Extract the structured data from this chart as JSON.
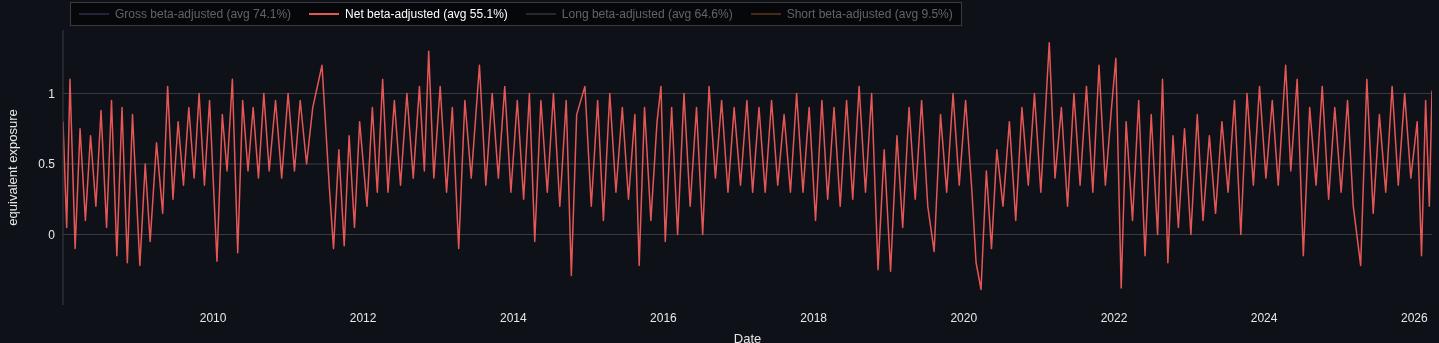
{
  "chart_data": {
    "type": "line",
    "xlabel": "Date",
    "ylabel": "equivalent exposure",
    "x": [
      "2008-01-02",
      "2008-01-20",
      "2008-02-05",
      "2008-03-01",
      "2008-03-25",
      "2008-04-20",
      "2008-05-15",
      "2008-06-10",
      "2008-07-05",
      "2008-08-01",
      "2008-08-25",
      "2008-09-20",
      "2008-10-15",
      "2008-11-10",
      "2008-12-05",
      "2009-01-10",
      "2009-02-05",
      "2009-03-01",
      "2009-04-01",
      "2009-05-01",
      "2009-05-25",
      "2009-06-20",
      "2009-07-15",
      "2009-08-10",
      "2009-09-05",
      "2009-10-01",
      "2009-10-25",
      "2009-11-20",
      "2009-12-15",
      "2010-01-20",
      "2010-02-15",
      "2010-03-10",
      "2010-04-05",
      "2010-05-01",
      "2010-05-25",
      "2010-06-20",
      "2010-07-15",
      "2010-08-10",
      "2010-09-05",
      "2010-10-01",
      "2010-11-01",
      "2010-12-01",
      "2011-01-01",
      "2011-02-01",
      "2011-03-01",
      "2011-04-01",
      "2011-05-01",
      "2011-06-15",
      "2011-07-20",
      "2011-08-10",
      "2011-09-05",
      "2011-10-01",
      "2011-10-25",
      "2011-11-20",
      "2011-12-15",
      "2012-01-20",
      "2012-02-15",
      "2012-03-10",
      "2012-04-05",
      "2012-05-01",
      "2012-06-01",
      "2012-07-01",
      "2012-08-01",
      "2012-09-01",
      "2012-10-01",
      "2012-10-25",
      "2012-11-15",
      "2012-12-10",
      "2013-01-10",
      "2013-02-10",
      "2013-03-10",
      "2013-04-10",
      "2013-05-10",
      "2013-06-10",
      "2013-07-20",
      "2013-08-20",
      "2013-09-20",
      "2013-10-20",
      "2013-11-20",
      "2013-12-20",
      "2014-01-20",
      "2014-02-20",
      "2014-03-20",
      "2014-04-15",
      "2014-05-15",
      "2014-06-15",
      "2014-07-15",
      "2014-08-15",
      "2014-09-15",
      "2014-10-10",
      "2014-11-05",
      "2014-12-15",
      "2015-01-15",
      "2015-02-15",
      "2015-03-15",
      "2015-04-15",
      "2015-05-15",
      "2015-06-15",
      "2015-07-15",
      "2015-08-15",
      "2015-09-05",
      "2015-10-01",
      "2015-11-01",
      "2015-12-01",
      "2015-12-20",
      "2016-01-10",
      "2016-02-10",
      "2016-03-10",
      "2016-04-10",
      "2016-05-10",
      "2016-06-10",
      "2016-07-10",
      "2016-08-10",
      "2016-09-10",
      "2016-10-10",
      "2016-11-10",
      "2016-12-10",
      "2017-01-10",
      "2017-02-10",
      "2017-03-10",
      "2017-04-10",
      "2017-05-10",
      "2017-06-10",
      "2017-07-10",
      "2017-08-10",
      "2017-09-10",
      "2017-10-10",
      "2017-11-10",
      "2017-12-10",
      "2018-01-10",
      "2018-02-10",
      "2018-03-10",
      "2018-04-10",
      "2018-05-10",
      "2018-06-10",
      "2018-07-10",
      "2018-08-10",
      "2018-09-10",
      "2018-10-10",
      "2018-11-10",
      "2018-12-10",
      "2019-01-10",
      "2019-02-10",
      "2019-03-10",
      "2019-04-10",
      "2019-05-10",
      "2019-06-10",
      "2019-07-10",
      "2019-08-10",
      "2019-09-10",
      "2019-10-10",
      "2019-11-10",
      "2019-12-10",
      "2020-01-10",
      "2020-02-10",
      "2020-03-01",
      "2020-03-25",
      "2020-04-20",
      "2020-05-15",
      "2020-06-10",
      "2020-07-10",
      "2020-08-10",
      "2020-09-10",
      "2020-10-10",
      "2020-11-10",
      "2020-12-10",
      "2021-01-10",
      "2021-02-20",
      "2021-03-20",
      "2021-04-20",
      "2021-05-20",
      "2021-06-20",
      "2021-07-20",
      "2021-08-20",
      "2021-09-20",
      "2021-10-20",
      "2021-11-20",
      "2021-12-20",
      "2022-01-10",
      "2022-02-05",
      "2022-03-01",
      "2022-04-01",
      "2022-05-01",
      "2022-06-01",
      "2022-07-01",
      "2022-08-01",
      "2022-08-25",
      "2022-09-20",
      "2022-10-15",
      "2022-11-10",
      "2022-12-10",
      "2023-01-10",
      "2023-02-10",
      "2023-03-10",
      "2023-04-10",
      "2023-05-10",
      "2023-06-10",
      "2023-07-10",
      "2023-08-10",
      "2023-09-10",
      "2023-10-10",
      "2023-11-10",
      "2023-12-10",
      "2024-01-10",
      "2024-02-10",
      "2024-03-10",
      "2024-04-15",
      "2024-05-10",
      "2024-06-10",
      "2024-07-10",
      "2024-08-10",
      "2024-09-10",
      "2024-10-10",
      "2024-11-10",
      "2024-12-10",
      "2025-01-10",
      "2025-02-10",
      "2025-03-10",
      "2025-04-15",
      "2025-05-15",
      "2025-06-15",
      "2025-07-15",
      "2025-08-15",
      "2025-09-15",
      "2025-10-15",
      "2025-11-15",
      "2025-12-15",
      "2026-01-15",
      "2026-02-05",
      "2026-02-25",
      "2026-03-15",
      "2026-03-28"
    ],
    "series": [
      {
        "name": "Gross beta-adjusted (avg 74.1%)",
        "color": "#3a4468",
        "values": [
          null,
          null,
          null,
          null,
          null,
          null,
          null,
          null,
          null,
          null,
          null,
          null,
          null,
          null,
          null,
          null,
          null,
          null,
          null,
          null,
          null,
          null,
          null,
          null,
          null,
          null,
          null,
          null,
          null,
          null,
          null,
          null,
          null,
          null,
          null,
          null,
          null,
          null,
          null,
          null,
          null,
          null,
          null,
          null,
          null,
          null,
          null,
          null,
          null,
          null,
          null,
          null,
          null,
          null,
          null,
          null,
          null,
          null,
          null,
          null,
          null,
          null,
          null,
          null,
          null,
          null,
          null,
          null,
          null,
          null,
          null,
          null,
          null,
          null,
          null,
          null,
          null,
          null,
          null,
          null,
          null,
          null,
          null,
          null,
          null,
          null,
          null,
          null,
          null,
          null,
          null,
          null,
          null,
          null,
          null,
          null,
          null,
          null,
          null,
          null,
          null,
          null,
          null,
          null,
          null,
          null,
          null,
          null,
          null,
          null,
          null,
          null,
          null,
          null,
          null,
          null,
          null,
          null,
          null,
          null,
          null,
          null,
          null,
          null,
          null,
          null,
          null,
          null,
          null,
          null,
          null,
          null,
          null,
          null,
          null,
          null,
          null,
          null,
          null,
          null,
          null,
          null,
          null,
          null,
          null,
          null,
          null,
          null,
          null,
          null,
          null,
          null,
          null,
          null,
          null,
          null,
          null,
          null,
          null,
          null,
          null,
          null,
          null,
          null,
          null,
          null,
          null,
          null,
          null,
          null,
          null,
          null,
          null,
          null,
          null,
          null,
          null,
          null,
          null,
          null,
          null,
          null,
          null,
          null,
          null,
          null,
          null,
          null,
          null,
          null,
          null,
          null,
          null,
          null,
          null,
          null,
          null,
          null,
          null,
          null,
          null,
          null,
          null,
          null,
          null,
          null,
          null,
          null,
          null,
          null,
          null,
          null,
          null,
          null,
          null,
          null,
          null,
          null,
          null,
          null,
          null,
          null,
          null,
          null,
          null,
          null,
          null,
          null,
          null,
          null,
          null,
          null
        ]
      },
      {
        "name": "Net beta-adjusted (avg 55.1%)",
        "color": "#e45756",
        "values": [
          0.8,
          0.05,
          1.1,
          -0.1,
          0.75,
          0.1,
          0.7,
          0.2,
          0.88,
          0.05,
          0.95,
          -0.15,
          0.9,
          -0.2,
          0.85,
          -0.22,
          0.5,
          -0.05,
          0.65,
          0.15,
          1.05,
          0.25,
          0.8,
          0.35,
          0.9,
          0.4,
          1.0,
          0.35,
          0.95,
          -0.19,
          0.85,
          0.45,
          1.1,
          -0.13,
          0.95,
          0.45,
          0.9,
          0.4,
          1.0,
          0.45,
          0.95,
          0.4,
          1.0,
          0.45,
          0.95,
          0.5,
          0.9,
          1.2,
          0.35,
          -0.1,
          0.6,
          -0.08,
          0.7,
          0.05,
          0.8,
          0.2,
          0.9,
          0.3,
          1.1,
          0.3,
          0.95,
          0.35,
          1.0,
          0.4,
          1.05,
          0.45,
          1.3,
          0.4,
          1.05,
          0.3,
          0.9,
          -0.1,
          0.95,
          0.4,
          1.2,
          0.35,
          1.0,
          0.4,
          1.05,
          0.3,
          0.95,
          0.25,
          1.0,
          -0.05,
          0.95,
          0.3,
          1.0,
          0.2,
          0.95,
          -0.29,
          0.85,
          1.05,
          0.2,
          0.95,
          0.1,
          1.0,
          0.3,
          0.9,
          0.25,
          0.85,
          -0.22,
          0.9,
          0.1,
          0.8,
          1.05,
          -0.05,
          0.9,
          0.0,
          1.0,
          0.2,
          0.9,
          0.0,
          1.05,
          0.4,
          0.95,
          0.3,
          0.9,
          0.35,
          0.95,
          0.3,
          0.9,
          0.3,
          0.95,
          0.35,
          0.85,
          0.3,
          1.0,
          0.3,
          0.9,
          0.1,
          0.95,
          0.25,
          0.9,
          0.2,
          0.95,
          0.25,
          1.05,
          0.3,
          1.0,
          -0.25,
          0.6,
          -0.26,
          0.7,
          0.05,
          0.9,
          0.25,
          0.95,
          0.2,
          -0.12,
          0.85,
          0.3,
          1.0,
          0.35,
          0.95,
          0.3,
          -0.2,
          -0.39,
          0.45,
          -0.1,
          0.6,
          0.2,
          0.8,
          0.1,
          0.9,
          0.35,
          1.0,
          0.3,
          1.36,
          0.4,
          0.9,
          0.2,
          1.0,
          0.35,
          1.05,
          0.3,
          1.2,
          0.35,
          0.9,
          1.25,
          -0.38,
          0.8,
          0.1,
          0.95,
          -0.15,
          0.85,
          0.0,
          1.1,
          -0.2,
          0.7,
          0.05,
          0.75,
          0.0,
          0.85,
          0.1,
          0.7,
          0.15,
          0.8,
          0.3,
          0.95,
          0.0,
          1.0,
          0.35,
          1.05,
          0.4,
          0.95,
          0.35,
          1.2,
          0.45,
          1.1,
          -0.15,
          0.9,
          0.35,
          1.05,
          0.25,
          0.9,
          0.3,
          0.95,
          0.2,
          -0.22,
          1.1,
          0.15,
          0.85,
          0.3,
          1.05,
          0.35,
          1.0,
          0.4,
          0.8,
          -0.15,
          0.95,
          0.2,
          1.02
        ]
      },
      {
        "name": "Long beta-adjusted (avg 64.6%)",
        "color": "#4a4a4a",
        "values": [
          null,
          null,
          null,
          null,
          null,
          null,
          null,
          null,
          null,
          null,
          null,
          null,
          null,
          null,
          null,
          null,
          null,
          null,
          null,
          null,
          null,
          null,
          null,
          null,
          null,
          null,
          null,
          null,
          null,
          null,
          null,
          null,
          null,
          null,
          null,
          null,
          null,
          null,
          null,
          null,
          null,
          null,
          null,
          null,
          null,
          null,
          null,
          null,
          null,
          null,
          null,
          null,
          null,
          null,
          null,
          null,
          null,
          null,
          null,
          null,
          null,
          null,
          null,
          null,
          null,
          null,
          null,
          null,
          null,
          null,
          null,
          null,
          null,
          null,
          null,
          null,
          null,
          null,
          null,
          null,
          null,
          null,
          null,
          null,
          null,
          null,
          null,
          null,
          null,
          null,
          null,
          null,
          null,
          null,
          null,
          null,
          null,
          null,
          null,
          null,
          null,
          null,
          null,
          null,
          null,
          null,
          null,
          null,
          null,
          null,
          null,
          null,
          null,
          null,
          null,
          null,
          null,
          null,
          null,
          null,
          null,
          null,
          null,
          null,
          null,
          null,
          null,
          null,
          null,
          null,
          null,
          null,
          null,
          null,
          null,
          null,
          null,
          null,
          null,
          null,
          null,
          null,
          null,
          null,
          null,
          null,
          null,
          null,
          null,
          null,
          null,
          null,
          null,
          null,
          null,
          null,
          null,
          null,
          null,
          null,
          null,
          null,
          null,
          null,
          null,
          null,
          null,
          null,
          null,
          null,
          null,
          null,
          null,
          null,
          null,
          null,
          null,
          null,
          null,
          null,
          null,
          null,
          null,
          null,
          null,
          null,
          null,
          null,
          null,
          null,
          null,
          null,
          null,
          null,
          null,
          null,
          null,
          null,
          null,
          null,
          null,
          null,
          null,
          null,
          null,
          null,
          null,
          null,
          null,
          null,
          null,
          null,
          null,
          null,
          null,
          null,
          null,
          null,
          null,
          null,
          null,
          null,
          null,
          null,
          null,
          null,
          null,
          null,
          null,
          null,
          null,
          null
        ]
      },
      {
        "name": "Short beta-adjusted (avg 9.5%)",
        "color": "#8a4f1c",
        "values": [
          null,
          null,
          null,
          null,
          null,
          null,
          null,
          null,
          null,
          null,
          null,
          null,
          null,
          null,
          null,
          null,
          null,
          null,
          null,
          null,
          null,
          null,
          null,
          null,
          null,
          null,
          null,
          null,
          null,
          null,
          null,
          null,
          null,
          null,
          null,
          null,
          null,
          null,
          null,
          null,
          null,
          null,
          null,
          null,
          null,
          null,
          null,
          null,
          null,
          null,
          null,
          null,
          null,
          null,
          null,
          null,
          null,
          null,
          null,
          null,
          null,
          null,
          null,
          null,
          null,
          null,
          null,
          null,
          null,
          null,
          null,
          null,
          null,
          null,
          null,
          null,
          null,
          null,
          null,
          null,
          null,
          null,
          null,
          null,
          null,
          null,
          null,
          null,
          null,
          null,
          null,
          null,
          null,
          null,
          null,
          null,
          null,
          null,
          null,
          null,
          null,
          null,
          null,
          null,
          null,
          null,
          null,
          null,
          null,
          null,
          null,
          null,
          null,
          null,
          null,
          null,
          null,
          null,
          null,
          null,
          null,
          null,
          null,
          null,
          null,
          null,
          null,
          null,
          null,
          null,
          null,
          null,
          null,
          null,
          null,
          null,
          null,
          null,
          null,
          null,
          null,
          null,
          null,
          null,
          null,
          null,
          null,
          null,
          null,
          null,
          null,
          null,
          null,
          null,
          null,
          null,
          null,
          null,
          null,
          null,
          null,
          null,
          null,
          null,
          null,
          null,
          null,
          null,
          null,
          null,
          null,
          null,
          null,
          null,
          null,
          null,
          null,
          null,
          null,
          null,
          null,
          null,
          null,
          null,
          null,
          null,
          null,
          null,
          null,
          null,
          null,
          null,
          null,
          null,
          null,
          null,
          null,
          null,
          null,
          null,
          null,
          null,
          null,
          null,
          null,
          null,
          null,
          null,
          null,
          null,
          null,
          null,
          null,
          null,
          null,
          null,
          null,
          null,
          null,
          null,
          null,
          null,
          null,
          null,
          null,
          null,
          null,
          null,
          null,
          null,
          null,
          null
        ]
      }
    ],
    "xlim": [
      "2008-01-02",
      "2026-03-28"
    ],
    "xticks": [
      {
        "value": "2010-01-01",
        "label": "2010"
      },
      {
        "value": "2012-01-01",
        "label": "2012"
      },
      {
        "value": "2014-01-01",
        "label": "2014"
      },
      {
        "value": "2016-01-01",
        "label": "2016"
      },
      {
        "value": "2018-01-01",
        "label": "2018"
      },
      {
        "value": "2020-01-01",
        "label": "2020"
      },
      {
        "value": "2022-01-01",
        "label": "2022"
      },
      {
        "value": "2024-01-01",
        "label": "2024"
      },
      {
        "value": "2026-01-01",
        "label": "2026"
      }
    ],
    "ylim": [
      -0.5,
      1.45
    ],
    "yticks": [
      0,
      0.5,
      1
    ],
    "grid": "y",
    "legend": "top left",
    "marker": "none",
    "line_style": "solid"
  }
}
